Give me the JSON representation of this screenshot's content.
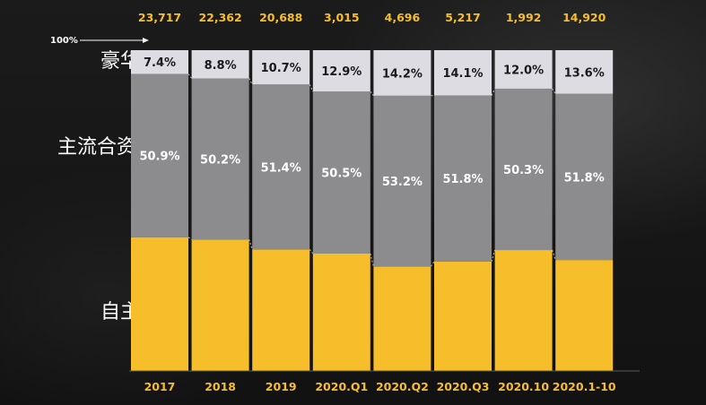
{
  "colors": {
    "domestic": "#f6be2a",
    "jv": "#8c8c8e",
    "luxury": "#dcdce2",
    "total_text": "#f6be2a",
    "axis_text": "#f6be2a"
  },
  "chart_data": {
    "type": "bar",
    "stacked": true,
    "normalized": true,
    "title": "",
    "xlabel": "",
    "ylabel": "",
    "ylim": [
      0,
      100
    ],
    "grid": false,
    "reference_label": "100%",
    "categories": [
      "2017",
      "2018",
      "2019",
      "2020.Q1",
      "2020.Q2",
      "2020.Q3",
      "2020.10",
      "2020.1-10"
    ],
    "totals": [
      "23,717",
      "22,362",
      "20,688",
      "3,015",
      "4,696",
      "5,217",
      "1,992",
      "14,920"
    ],
    "series": [
      {
        "name": "自主",
        "key": "domestic",
        "values": [
          41.7,
          41.0,
          37.9,
          36.6,
          32.6,
          34.1,
          37.7,
          34.6
        ]
      },
      {
        "name": "主流合资",
        "key": "jv",
        "values": [
          50.9,
          50.2,
          51.4,
          50.5,
          53.2,
          51.8,
          50.3,
          51.8
        ],
        "labels": [
          "50.9%",
          "50.2%",
          "51.4%",
          "50.5%",
          "53.2%",
          "51.8%",
          "50.3%",
          "51.8%"
        ]
      },
      {
        "name": "豪华",
        "key": "luxury",
        "values": [
          7.4,
          8.8,
          10.7,
          12.9,
          14.2,
          14.1,
          12.0,
          13.6
        ],
        "labels": [
          "7.4%",
          "8.8%",
          "10.7%",
          "12.9%",
          "14.2%",
          "14.1%",
          "12.0%",
          "13.6%"
        ]
      }
    ]
  }
}
